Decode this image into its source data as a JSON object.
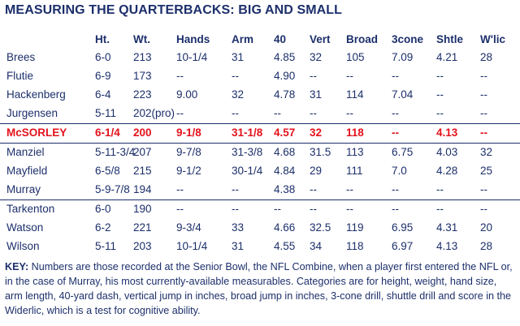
{
  "title": "MEASURING THE QUARTERBACKS: BIG AND SMALL",
  "columns": [
    "",
    "Ht.",
    "Wt.",
    "Hands",
    "Arm",
    "40",
    "Vert",
    "Broad",
    "3cone",
    "Shtle",
    "W'lic"
  ],
  "rows": [
    {
      "name": "Brees",
      "ht": "6-0",
      "wt": "213",
      "hands": "10-1/4",
      "arm": "31",
      "forty": "4.85",
      "vert": "32",
      "broad": "105",
      "cone": "7.09",
      "shtle": "4.21",
      "wlic": "28"
    },
    {
      "name": "Flutie",
      "ht": "6-9",
      "wt": "173",
      "hands": "--",
      "arm": "--",
      "forty": "4.90",
      "vert": "--",
      "broad": "--",
      "cone": "--",
      "shtle": "--",
      "wlic": "--"
    },
    {
      "name": "Hackenberg",
      "ht": "6-4",
      "wt": "223",
      "hands": "9.00",
      "arm": "32",
      "forty": "4.78",
      "vert": "31",
      "broad": "114",
      "cone": "7.04",
      "shtle": "--",
      "wlic": "--"
    },
    {
      "name": "Jurgensen",
      "ht": "5-11",
      "wt": "202(pro)",
      "hands": "--",
      "arm": "--",
      "forty": "--",
      "vert": "--",
      "broad": "--",
      "cone": "--",
      "shtle": "--",
      "wlic": "--"
    },
    {
      "name": "McSORLEY",
      "ht": "6-1/4",
      "wt": "200",
      "hands": "9-1/8",
      "arm": "31-1/8",
      "forty": "4.57",
      "vert": "32",
      "broad": "118",
      "cone": "--",
      "shtle": "4.13",
      "wlic": "--"
    },
    {
      "name": "Manziel",
      "ht": "5-11-3/4",
      "wt": "207",
      "hands": "9-7/8",
      "arm": "31-3/8",
      "forty": "4.68",
      "vert": "31.5",
      "broad": "113",
      "cone": "6.75",
      "shtle": "4.03",
      "wlic": "32"
    },
    {
      "name": "Mayfield",
      "ht": "6-5/8",
      "wt": "215",
      "hands": "9-1/2",
      "arm": "30-1/4",
      "forty": "4.84",
      "vert": "29",
      "broad": "111",
      "cone": "7.0",
      "shtle": "4.28",
      "wlic": "25"
    },
    {
      "name": "Murray",
      "ht": "5-9-7/8",
      "wt": "194",
      "hands": "--",
      "arm": "--",
      "forty": "4.38",
      "vert": "--",
      "broad": "--",
      "cone": "--",
      "shtle": "--",
      "wlic": "--"
    },
    {
      "name": "Tarkenton",
      "ht": "6-0",
      "wt": "190",
      "hands": "--",
      "arm": "--",
      "forty": "--",
      "vert": "--",
      "broad": "--",
      "cone": "--",
      "shtle": "--",
      "wlic": "--"
    },
    {
      "name": "Watson",
      "ht": "6-2",
      "wt": "221",
      "hands": "9-3/4",
      "arm": "33",
      "forty": "4.66",
      "vert": "32.5",
      "broad": "119",
      "cone": "6.95",
      "shtle": "4.31",
      "wlic": "20"
    },
    {
      "name": "Wilson",
      "ht": "5-11",
      "wt": "203",
      "hands": "10-1/4",
      "arm": "31",
      "forty": "4.55",
      "vert": "34",
      "broad": "118",
      "cone": "6.97",
      "shtle": "4.13",
      "wlic": "28"
    }
  ],
  "highlight_row": "McSORLEY",
  "colors": {
    "text": "#1c2f6b",
    "highlight": "#e3121b",
    "rule": "#1c2f6b"
  },
  "key": {
    "label": "KEY:",
    "text": "Numbers are those recorded at the Senior Bowl, the NFL Combine, when a player first entered the NFL or, in the case of Murray, his most currently-available measurables. Categories are for height, weight, hand size, arm length, 40-yard dash, vertical jump in inches, broad jump in inches, 3-cone drill, shuttle drill and score in the Widerlic, which is a test for cognitive ability."
  }
}
